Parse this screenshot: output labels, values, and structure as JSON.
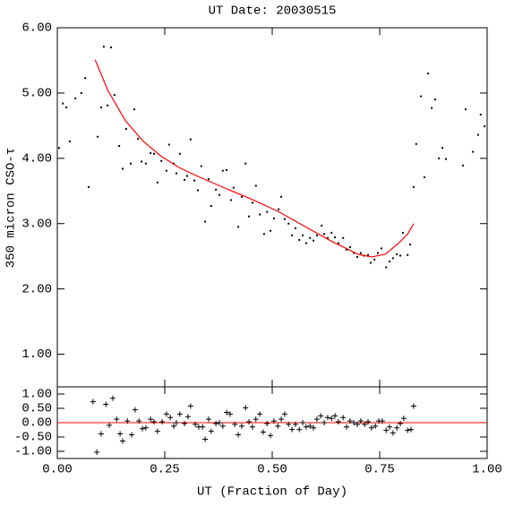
{
  "chart_data": [
    {
      "type": "scatter",
      "title": "UT Date: 20030515",
      "y_label": "350 micron CSO-τ",
      "xlim": [
        0,
        1
      ],
      "xticks": [
        0,
        0.25,
        0.5,
        0.75,
        1
      ],
      "ylim": [
        0.5,
        6
      ],
      "yticks": [
        {
          "value": 1,
          "label": "1.00"
        },
        {
          "value": 2,
          "label": "2.00"
        },
        {
          "value": 3,
          "label": "3.00"
        },
        {
          "value": 4,
          "label": "4.00"
        },
        {
          "value": 5,
          "label": "5.00"
        },
        {
          "value": 6,
          "label": "6.00"
        }
      ],
      "series": [
        {
          "type": "scatter",
          "color": "#000000",
          "x": [
            0.004,
            0.013,
            0.021,
            0.029,
            0.042,
            0.056,
            0.065,
            0.073,
            0.094,
            0.102,
            0.108,
            0.117,
            0.125,
            0.133,
            0.144,
            0.152,
            0.16,
            0.171,
            0.179,
            0.188,
            0.196,
            0.206,
            0.217,
            0.225,
            0.233,
            0.242,
            0.254,
            0.26,
            0.271,
            0.277,
            0.285,
            0.296,
            0.302,
            0.31,
            0.319,
            0.327,
            0.335,
            0.344,
            0.352,
            0.358,
            0.369,
            0.377,
            0.385,
            0.394,
            0.404,
            0.41,
            0.421,
            0.429,
            0.438,
            0.446,
            0.454,
            0.462,
            0.471,
            0.481,
            0.488,
            0.496,
            0.504,
            0.515,
            0.521,
            0.529,
            0.538,
            0.546,
            0.554,
            0.563,
            0.571,
            0.579,
            0.588,
            0.596,
            0.604,
            0.615,
            0.621,
            0.629,
            0.638,
            0.646,
            0.654,
            0.665,
            0.673,
            0.681,
            0.69,
            0.698,
            0.706,
            0.713,
            0.723,
            0.729,
            0.738,
            0.746,
            0.754,
            0.765,
            0.773,
            0.781,
            0.79,
            0.798,
            0.804,
            0.815,
            0.821,
            0.829,
            0.835,
            0.846,
            0.854,
            0.863,
            0.871,
            0.879,
            0.888,
            0.896,
            0.904,
            0.944,
            0.95,
            0.967,
            0.979,
            0.985,
            0.994
          ],
          "values": [
            4.16,
            4.84,
            4.78,
            4.26,
            4.92,
            5.0,
            5.23,
            3.56,
            4.33,
            4.78,
            5.71,
            4.81,
            5.7,
            4.97,
            4.19,
            3.84,
            4.45,
            3.92,
            4.75,
            4.3,
            3.95,
            3.92,
            4.08,
            4.07,
            3.63,
            3.96,
            3.81,
            4.21,
            3.92,
            3.77,
            4.07,
            3.67,
            3.73,
            4.29,
            3.66,
            3.51,
            3.88,
            3.03,
            3.68,
            3.27,
            3.52,
            3.44,
            3.81,
            3.82,
            3.36,
            3.55,
            2.95,
            3.41,
            3.92,
            3.11,
            3.32,
            3.58,
            3.14,
            2.84,
            3.18,
            2.89,
            3.08,
            3.22,
            3.41,
            3.07,
            3.0,
            2.82,
            2.93,
            2.75,
            2.82,
            2.7,
            2.78,
            2.74,
            2.82,
            2.97,
            2.84,
            2.78,
            2.86,
            2.79,
            2.7,
            2.78,
            2.6,
            2.64,
            2.55,
            2.49,
            2.55,
            2.51,
            2.52,
            2.4,
            2.45,
            2.55,
            2.62,
            2.33,
            2.42,
            2.47,
            2.53,
            2.51,
            2.86,
            2.52,
            2.68,
            3.56,
            4.22,
            4.95,
            3.71,
            5.3,
            4.77,
            4.9,
            4.0,
            4.16,
            3.99,
            3.89,
            4.75,
            4.1,
            4.36,
            4.67,
            4.49
          ]
        },
        {
          "type": "line",
          "color": "#ff0000",
          "x": [
            0.088,
            0.117,
            0.158,
            0.2,
            0.242,
            0.283,
            0.325,
            0.388,
            0.45,
            0.513,
            0.575,
            0.638,
            0.7,
            0.731,
            0.763,
            0.794,
            0.815,
            0.829
          ],
          "values": [
            5.51,
            5.05,
            4.58,
            4.26,
            4.03,
            3.86,
            3.73,
            3.55,
            3.38,
            3.19,
            2.96,
            2.73,
            2.53,
            2.49,
            2.53,
            2.7,
            2.84,
            3.0
          ]
        }
      ]
    },
    {
      "type": "residual",
      "x_label": "UT (Fraction of Day)",
      "xlim": [
        0,
        1
      ],
      "xticks": [
        {
          "value": 0,
          "label": "0.00"
        },
        {
          "value": 0.25,
          "label": "0.25"
        },
        {
          "value": 0.5,
          "label": "0.50"
        },
        {
          "value": 0.75,
          "label": "0.75"
        },
        {
          "value": 1,
          "label": "1.00"
        }
      ],
      "ylim": [
        -1.25,
        1.25
      ],
      "yticks": [
        {
          "value": 1,
          "label": "1.00"
        },
        {
          "value": 0.5,
          "label": "0.50"
        },
        {
          "value": 0,
          "label": "0.00"
        },
        {
          "value": -0.5,
          "label": "-0.50"
        },
        {
          "value": -1,
          "label": "-1.00"
        }
      ],
      "hline": 0,
      "hline_color": "#ff0000",
      "series": [
        {
          "type": "cross",
          "color": "#000000",
          "x": [
            0.083,
            0.092,
            0.102,
            0.113,
            0.121,
            0.129,
            0.138,
            0.146,
            0.152,
            0.163,
            0.173,
            0.181,
            0.19,
            0.198,
            0.206,
            0.217,
            0.225,
            0.233,
            0.244,
            0.254,
            0.263,
            0.271,
            0.277,
            0.285,
            0.296,
            0.304,
            0.31,
            0.321,
            0.329,
            0.338,
            0.344,
            0.352,
            0.358,
            0.369,
            0.377,
            0.385,
            0.394,
            0.402,
            0.413,
            0.421,
            0.429,
            0.438,
            0.446,
            0.454,
            0.462,
            0.471,
            0.479,
            0.488,
            0.496,
            0.504,
            0.513,
            0.521,
            0.529,
            0.538,
            0.546,
            0.554,
            0.563,
            0.571,
            0.579,
            0.588,
            0.596,
            0.604,
            0.613,
            0.621,
            0.629,
            0.638,
            0.646,
            0.654,
            0.665,
            0.673,
            0.681,
            0.69,
            0.698,
            0.706,
            0.715,
            0.723,
            0.731,
            0.74,
            0.748,
            0.756,
            0.765,
            0.773,
            0.781,
            0.79,
            0.798,
            0.806,
            0.815,
            0.823,
            0.829
          ],
          "values": [
            0.73,
            -1.03,
            -0.39,
            0.64,
            -0.09,
            0.85,
            0.12,
            -0.39,
            -0.64,
            0.06,
            -0.42,
            0.45,
            0.06,
            -0.21,
            -0.18,
            0.12,
            0.03,
            -0.3,
            0.03,
            0.3,
            0.18,
            -0.12,
            0,
            0.3,
            -0.03,
            0.21,
            0.58,
            -0.06,
            -0.15,
            -0.15,
            -0.58,
            0.12,
            -0.3,
            -0.03,
            0,
            -0.12,
            0.36,
            0.3,
            -0.06,
            -0.42,
            -0.12,
            0.52,
            0.03,
            -0.15,
            0.12,
            0.3,
            -0.33,
            -0.03,
            -0.45,
            0.06,
            -0.12,
            0.12,
            0.3,
            -0.06,
            -0.24,
            -0.06,
            -0.24,
            0,
            -0.15,
            -0.12,
            -0.18,
            0.12,
            0.24,
            0,
            0.18,
            0.15,
            0.24,
            0.03,
            0.18,
            -0.15,
            0.06,
            0,
            -0.06,
            0.06,
            -0.06,
            0.03,
            -0.18,
            -0.12,
            0.06,
            0.06,
            -0.27,
            -0.15,
            -0.36,
            -0.18,
            -0.03,
            0.15,
            -0.27,
            -0.24,
            0.58
          ]
        }
      ]
    }
  ]
}
